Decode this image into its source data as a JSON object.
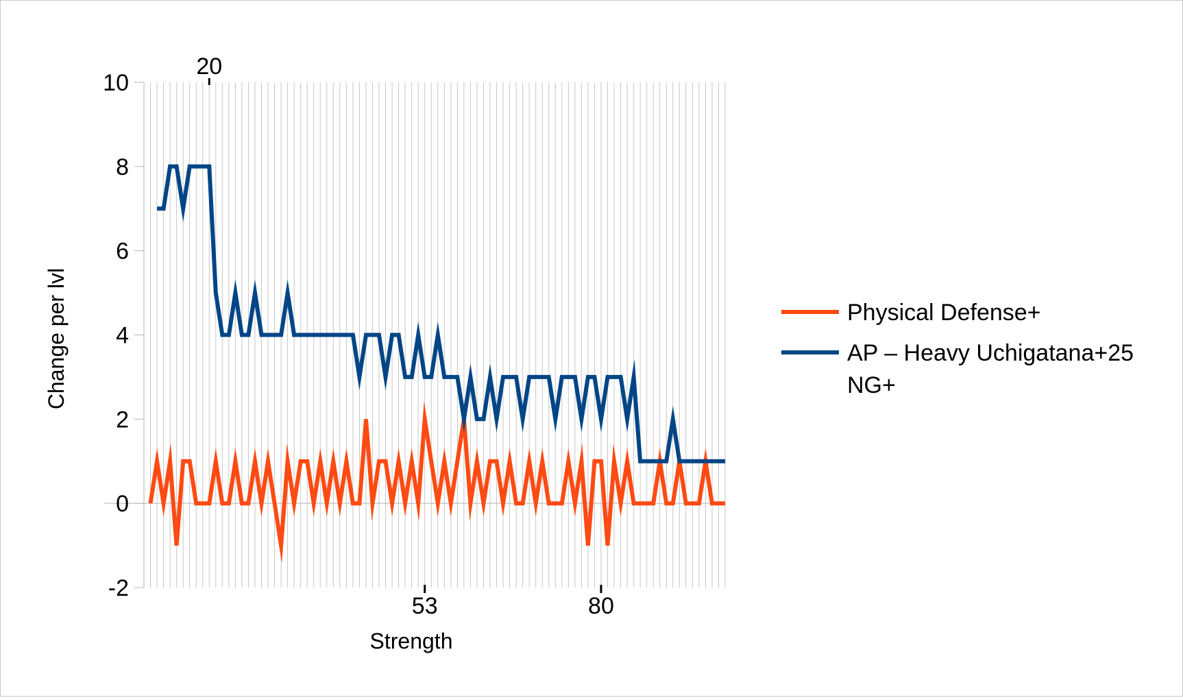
{
  "chart_data": {
    "type": "line",
    "title": "",
    "xlabel": "Strength",
    "ylabel": "Change per lvl",
    "ylim": [
      -2,
      10
    ],
    "yticks": [
      -2,
      0,
      2,
      4,
      6,
      8,
      10
    ],
    "xlim": [
      10,
      99
    ],
    "x_tick_labels_bottom": [
      53,
      80
    ],
    "x_tick_labels_top": [
      20
    ],
    "grid": "vertical",
    "legend_position": "right",
    "x": [
      11,
      12,
      13,
      14,
      15,
      16,
      17,
      18,
      19,
      20,
      21,
      22,
      23,
      24,
      25,
      26,
      27,
      28,
      29,
      30,
      31,
      32,
      33,
      34,
      35,
      36,
      37,
      38,
      39,
      40,
      41,
      42,
      43,
      44,
      45,
      46,
      47,
      48,
      49,
      50,
      51,
      52,
      53,
      54,
      55,
      56,
      57,
      58,
      59,
      60,
      61,
      62,
      63,
      64,
      65,
      66,
      67,
      68,
      69,
      70,
      71,
      72,
      73,
      74,
      75,
      76,
      77,
      78,
      79,
      80,
      81,
      82,
      83,
      84,
      85,
      86,
      87,
      88,
      89,
      90,
      91,
      92,
      93,
      94,
      95,
      96,
      97,
      98,
      99
    ],
    "series": [
      {
        "name": "Physical Defense+",
        "color": "#ff4a12",
        "values": [
          0,
          1,
          0,
          1,
          -1,
          1,
          1,
          0,
          0,
          0,
          1,
          0,
          0,
          1,
          0,
          0,
          1,
          0,
          1,
          0,
          -1,
          1,
          0,
          1,
          1,
          0,
          1,
          0,
          1,
          0,
          1,
          0,
          0,
          2,
          0,
          1,
          1,
          0,
          1,
          0,
          1,
          0,
          2,
          1,
          0,
          1,
          0,
          1,
          2,
          0,
          1,
          0,
          1,
          1,
          0,
          1,
          0,
          0,
          1,
          0,
          1,
          0,
          0,
          0,
          1,
          0,
          1,
          -1,
          1,
          1,
          -1,
          1,
          0,
          1,
          0,
          0,
          0,
          0,
          1,
          0,
          0,
          1,
          0,
          0,
          0,
          1,
          0,
          0,
          0
        ]
      },
      {
        "name": "AP – Heavy Uchigatana+25 NG+",
        "color": "#004586",
        "values": [
          null,
          7,
          7,
          8,
          8,
          7,
          8,
          8,
          8,
          8,
          5,
          4,
          4,
          5,
          4,
          4,
          5,
          4,
          4,
          4,
          4,
          5,
          4,
          4,
          4,
          4,
          4,
          4,
          4,
          4,
          4,
          4,
          3,
          4,
          4,
          4,
          3,
          4,
          4,
          3,
          3,
          4,
          3,
          3,
          4,
          3,
          3,
          3,
          2,
          3,
          2,
          2,
          3,
          2,
          3,
          3,
          3,
          2,
          3,
          3,
          3,
          3,
          2,
          3,
          3,
          3,
          2,
          3,
          3,
          2,
          3,
          3,
          3,
          2,
          3,
          1,
          1,
          1,
          1,
          1,
          2,
          1,
          1,
          1,
          1,
          1,
          1,
          1,
          1
        ]
      }
    ]
  }
}
